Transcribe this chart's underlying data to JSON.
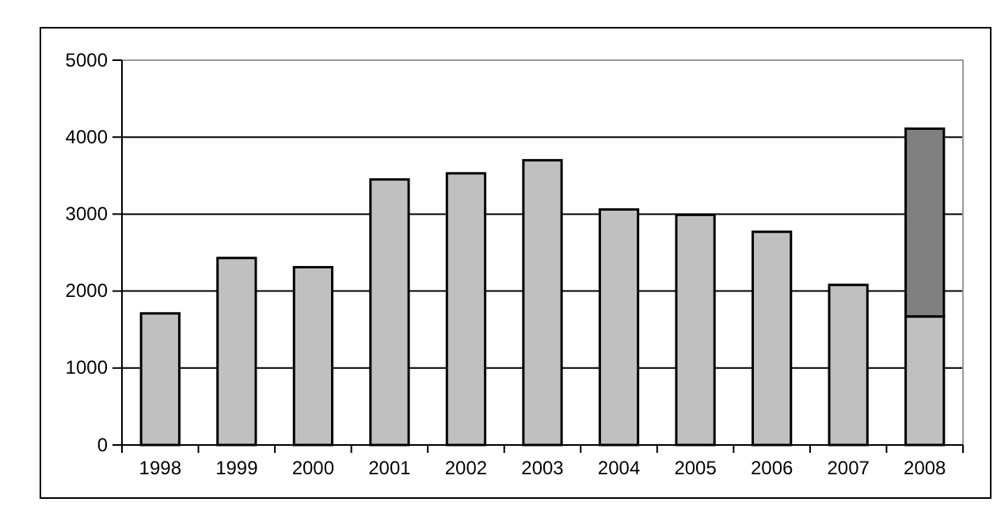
{
  "chart_data": {
    "type": "bar",
    "stacked": true,
    "categories": [
      "1998",
      "1999",
      "2000",
      "2001",
      "2002",
      "2003",
      "2004",
      "2005",
      "2006",
      "2007",
      "2008"
    ],
    "series": [
      {
        "color": "#c0c0c0",
        "values": [
          1710,
          2430,
          2310,
          3450,
          3530,
          3700,
          3060,
          2990,
          2770,
          2080,
          1670
        ]
      },
      {
        "color": "#808080",
        "values": [
          null,
          null,
          null,
          null,
          null,
          null,
          null,
          null,
          null,
          null,
          2440
        ]
      }
    ],
    "ylim": [
      0,
      5000
    ],
    "yticks": [
      0,
      1000,
      2000,
      3000,
      4000,
      5000
    ],
    "grid": "y"
  }
}
